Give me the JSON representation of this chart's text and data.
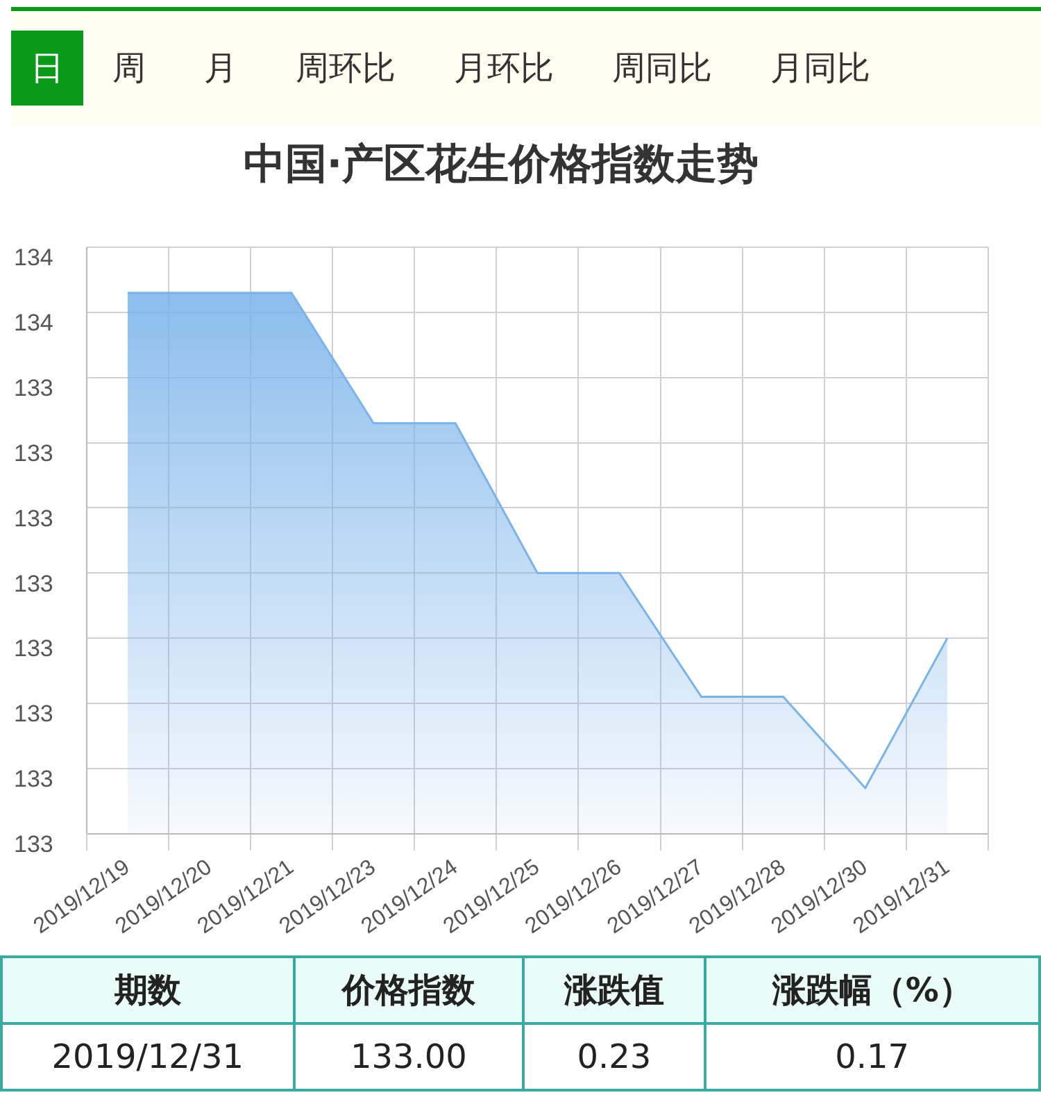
{
  "chart_data": {
    "type": "area",
    "title": "中国·产区花生价格指数走势",
    "categories": [
      "2019/12/19",
      "2019/12/20",
      "2019/12/21",
      "2019/12/23",
      "2019/12/24",
      "2019/12/25",
      "2019/12/26",
      "2019/12/27",
      "2019/12/28",
      "2019/12/30",
      "2019/12/31"
    ],
    "series": [
      {
        "color": "#7ab3ea",
        "values": [
          133.53,
          133.53,
          133.53,
          133.33,
          133.33,
          133.1,
          133.1,
          132.91,
          132.91,
          132.77,
          133.0
        ]
      }
    ],
    "ylim": [
      132.7,
      133.6
    ],
    "yticks": [
      {
        "value": 132.7,
        "label": "133"
      },
      {
        "value": 132.8,
        "label": "133"
      },
      {
        "value": 132.9,
        "label": "133"
      },
      {
        "value": 133.0,
        "label": "133"
      },
      {
        "value": 133.1,
        "label": "133"
      },
      {
        "value": 133.2,
        "label": "133"
      },
      {
        "value": 133.3,
        "label": "133"
      },
      {
        "value": 133.4,
        "label": "133"
      },
      {
        "value": 133.5,
        "label": "134"
      },
      {
        "value": 133.6,
        "label": "134"
      }
    ],
    "grid": true,
    "annotations": [
      "日",
      "周",
      "月",
      "周环比",
      "月环比",
      "周同比",
      "月同比",
      "期数",
      "价格指数",
      "涨跌值",
      "涨跌幅（%）",
      "2019/12/31",
      "133.00",
      "0.23",
      "0.17"
    ]
  }
}
